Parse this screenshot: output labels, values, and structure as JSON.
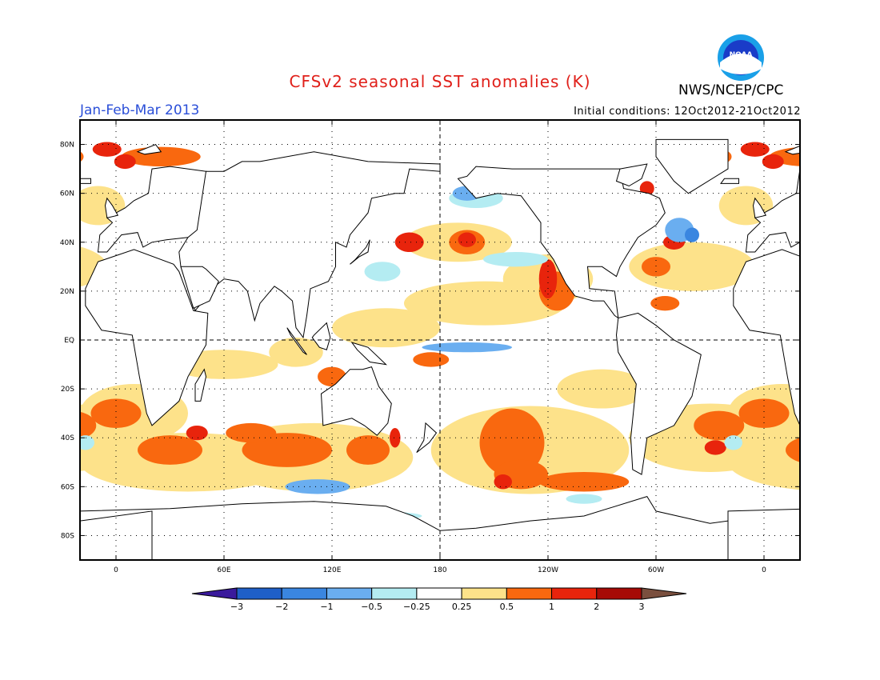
{
  "title": "CFSv2 seasonal SST anomalies (K)",
  "season": "Jan-Feb-Mar 2013",
  "initial_conditions": "Initial conditions: 12Oct2012-21Oct2012",
  "agency": "NWS/NCEP/CPC",
  "logo_text": "NOAA",
  "map": {
    "lat_labels": [
      {
        "lat": 80,
        "label": "80N"
      },
      {
        "lat": 60,
        "label": "60N"
      },
      {
        "lat": 40,
        "label": "40N"
      },
      {
        "lat": 20,
        "label": "20N"
      },
      {
        "lat": 0,
        "label": "EQ"
      },
      {
        "lat": -20,
        "label": "20S"
      },
      {
        "lat": -40,
        "label": "40S"
      },
      {
        "lat": -60,
        "label": "60S"
      },
      {
        "lat": -80,
        "label": "80S"
      }
    ],
    "lon_labels": [
      {
        "lon": 0,
        "label": "0"
      },
      {
        "lon": 60,
        "label": "60E"
      },
      {
        "lon": 120,
        "label": "120E"
      },
      {
        "lon": 180,
        "label": "180"
      },
      {
        "lon": 240,
        "label": "120W"
      },
      {
        "lon": 300,
        "label": "60W"
      },
      {
        "lon": 360,
        "label": "0"
      }
    ]
  },
  "colorbar": {
    "labels": [
      "-3",
      "-2",
      "-1",
      "-0.5",
      "-0.25",
      "0.25",
      "0.5",
      "1",
      "2",
      "3"
    ],
    "colors": [
      "#3a1a9c",
      "#1f5fc8",
      "#3a86e0",
      "#6aaef0",
      "#b4ecf2",
      "#ffffff",
      "#fde28a",
      "#f9680f",
      "#e8240c",
      "#a60a06",
      "#7a4f3e"
    ]
  },
  "colors": {
    "title": "#e0201a",
    "season": "#2b4fd8",
    "light_warm": "#fde28a",
    "warm": "#f9680f",
    "hot": "#e8240c",
    "very_hot": "#a60a06",
    "light_cool": "#b4ecf2",
    "cool": "#6aaef0",
    "cold": "#3a86e0"
  }
}
